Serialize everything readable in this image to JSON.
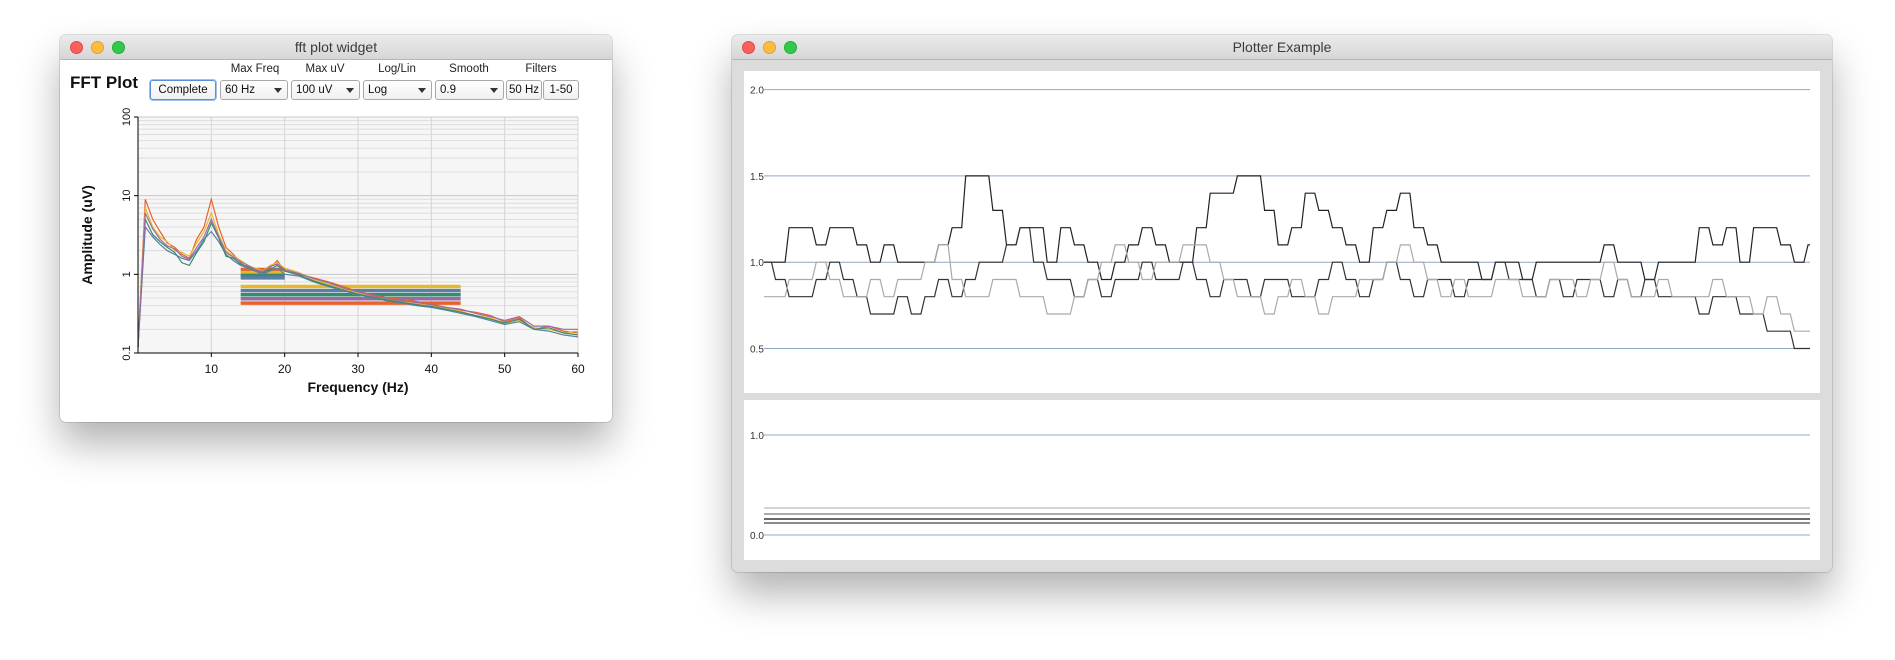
{
  "fft_window": {
    "title": "fft plot widget",
    "heading": "FFT Plot",
    "controls": {
      "complete_label": "Complete",
      "max_freq": {
        "label": "Max Freq",
        "value": "60 Hz"
      },
      "max_uv": {
        "label": "Max uV",
        "value": "100 uV"
      },
      "log_lin": {
        "label": "Log/Lin",
        "value": "Log"
      },
      "smooth": {
        "label": "Smooth",
        "value": "0.9"
      },
      "filters": {
        "label": "Filters",
        "button_50hz": "50 Hz",
        "button_range": "1-50"
      }
    },
    "chart": {
      "xlabel": "Frequency (Hz)",
      "ylabel": "Amplitude (uV)",
      "x_ticks": [
        "10",
        "20",
        "30",
        "40",
        "50",
        "60"
      ],
      "y_ticks": [
        "0.1",
        "1",
        "10",
        "100"
      ]
    }
  },
  "plotter_window": {
    "title": "Plotter Example",
    "top_panel": {
      "y_ticks": [
        "2.0",
        "1.5",
        "1.0",
        "0.5"
      ]
    },
    "bottom_panel": {
      "y_ticks": [
        "1.0",
        "0.0"
      ]
    }
  },
  "chart_data": [
    {
      "type": "line",
      "xlabel": "Frequency (Hz)",
      "ylabel": "Amplitude (uV)",
      "xlim": [
        0,
        60
      ],
      "ylim": [
        0.1,
        100
      ],
      "yscale": "log",
      "grid": true,
      "x": [
        0,
        1,
        2,
        3,
        4,
        5,
        6,
        7,
        8,
        9,
        10,
        11,
        12,
        13,
        14,
        15,
        16,
        17,
        18,
        19,
        20,
        22,
        24,
        26,
        28,
        30,
        32,
        34,
        36,
        38,
        40,
        42,
        44,
        46,
        48,
        50,
        52,
        54,
        56,
        58,
        60
      ],
      "series": [
        {
          "color": "#e8622c",
          "values": [
            0.12,
            9,
            5,
            3.5,
            2.5,
            2.2,
            1.8,
            1.6,
            2.8,
            4,
            9,
            4,
            2.2,
            1.8,
            1.4,
            1.2,
            1.1,
            1.0,
            1.2,
            1.5,
            1.1,
            1.0,
            0.9,
            0.8,
            0.7,
            0.6,
            0.55,
            0.5,
            0.48,
            0.45,
            0.42,
            0.38,
            0.35,
            0.33,
            0.3,
            0.25,
            0.28,
            0.2,
            0.22,
            0.19,
            0.18
          ]
        },
        {
          "color": "#e8b82c",
          "values": [
            0.12,
            7,
            4,
            3,
            2.6,
            2.0,
            1.9,
            1.7,
            2.5,
            3.5,
            6,
            3.2,
            2.0,
            1.7,
            1.5,
            1.3,
            1.2,
            1.1,
            1.3,
            1.4,
            1.2,
            1.05,
            0.85,
            0.75,
            0.65,
            0.58,
            0.52,
            0.48,
            0.45,
            0.43,
            0.4,
            0.37,
            0.34,
            0.3,
            0.28,
            0.24,
            0.26,
            0.21,
            0.2,
            0.18,
            0.19
          ]
        },
        {
          "color": "#5a7fa8",
          "values": [
            0.12,
            4,
            3,
            2.4,
            2.0,
            1.8,
            1.6,
            1.5,
            2.0,
            2.8,
            3.5,
            2.6,
            1.8,
            1.5,
            1.3,
            1.2,
            1.1,
            1.0,
            1.1,
            1.2,
            1.0,
            0.95,
            0.8,
            0.7,
            0.62,
            0.55,
            0.5,
            0.46,
            0.43,
            0.4,
            0.38,
            0.35,
            0.32,
            0.29,
            0.26,
            0.23,
            0.25,
            0.2,
            0.19,
            0.17,
            0.16
          ]
        },
        {
          "color": "#3a8a6e",
          "values": [
            0.12,
            5,
            3.2,
            2.6,
            2.2,
            1.9,
            1.4,
            1.3,
            1.9,
            2.6,
            4.5,
            2.9,
            1.7,
            1.6,
            1.35,
            1.25,
            1.15,
            1.05,
            1.15,
            1.3,
            1.1,
            0.98,
            0.82,
            0.72,
            0.63,
            0.56,
            0.51,
            0.47,
            0.44,
            0.41,
            0.39,
            0.36,
            0.33,
            0.3,
            0.27,
            0.24,
            0.27,
            0.2,
            0.21,
            0.18,
            0.17
          ]
        },
        {
          "color": "#9a6aa8",
          "values": [
            0.12,
            6,
            3.8,
            2.8,
            2.3,
            2.1,
            1.7,
            1.55,
            2.2,
            3.0,
            5,
            3.0,
            1.9,
            1.65,
            1.45,
            1.3,
            1.15,
            1.08,
            1.25,
            1.35,
            1.15,
            1.02,
            0.88,
            0.78,
            0.67,
            0.6,
            0.53,
            0.49,
            0.46,
            0.44,
            0.41,
            0.38,
            0.36,
            0.32,
            0.29,
            0.26,
            0.29,
            0.22,
            0.22,
            0.2,
            0.2
          ]
        }
      ],
      "bands": [
        {
          "x_range": [
            14,
            20
          ],
          "y": 1.15,
          "color": "#e8622c"
        },
        {
          "x_range": [
            14,
            20
          ],
          "y": 1.05,
          "color": "#e8b82c"
        },
        {
          "x_range": [
            14,
            20
          ],
          "y": 0.97,
          "color": "#3a8a6e"
        },
        {
          "x_range": [
            14,
            20
          ],
          "y": 0.9,
          "color": "#5a7fa8"
        },
        {
          "x_range": [
            14,
            44
          ],
          "y": 0.7,
          "color": "#e8b82c"
        },
        {
          "x_range": [
            14,
            44
          ],
          "y": 0.62,
          "color": "#5a7fa8"
        },
        {
          "x_range": [
            14,
            44
          ],
          "y": 0.55,
          "color": "#3a8a6e"
        },
        {
          "x_range": [
            14,
            44
          ],
          "y": 0.49,
          "color": "#9a6aa8"
        },
        {
          "x_range": [
            14,
            44
          ],
          "y": 0.43,
          "color": "#e8622c"
        }
      ]
    },
    {
      "type": "line",
      "ylim": [
        0.3,
        2.05
      ],
      "reference_lines": [
        2.0,
        1.5,
        1.0,
        0.5
      ],
      "series": [
        {
          "color": "#222222",
          "values": [
            1.0,
            1.0,
            1.2,
            1.2,
            1.1,
            1.2,
            1.2,
            1.1,
            1.0,
            1.1,
            1.0,
            1.0,
            1.0,
            1.1,
            1.2,
            1.5,
            1.5,
            1.3,
            1.1,
            1.2,
            1.2,
            1.0,
            1.2,
            1.1,
            1.0,
            0.9,
            1.0,
            1.1,
            1.2,
            1.1,
            1.0,
            1.0,
            1.2,
            1.4,
            1.4,
            1.5,
            1.5,
            1.3,
            1.1,
            1.2,
            1.4,
            1.3,
            1.2,
            1.1,
            1.0,
            1.2,
            1.3,
            1.4,
            1.2,
            1.1,
            1.0,
            1.0,
            1.0,
            0.9,
            1.0,
            1.0,
            0.9,
            1.0,
            1.0,
            1.0,
            1.0,
            1.0,
            1.1,
            1.0,
            1.0,
            0.9,
            1.0,
            1.0,
            1.0,
            1.2,
            1.1,
            1.2,
            1.0,
            1.2,
            1.2,
            1.1,
            1.0,
            1.1
          ]
        },
        {
          "color": "#333333",
          "values": [
            1.0,
            0.9,
            0.8,
            0.8,
            0.9,
            1.0,
            0.9,
            0.8,
            0.7,
            0.7,
            0.8,
            0.7,
            0.8,
            0.9,
            0.8,
            0.9,
            1.0,
            1.0,
            1.1,
            1.2,
            1.0,
            0.9,
            0.9,
            0.8,
            0.9,
            0.8,
            0.9,
            0.9,
            1.0,
            0.9,
            0.9,
            1.0,
            0.9,
            0.8,
            0.9,
            0.9,
            0.8,
            0.9,
            0.9,
            0.8,
            0.8,
            0.9,
            1.0,
            0.9,
            0.8,
            0.9,
            1.0,
            0.9,
            0.8,
            0.9,
            0.9,
            0.8,
            0.9,
            0.9,
            1.0,
            0.9,
            0.9,
            0.8,
            0.9,
            0.8,
            0.9,
            0.9,
            0.8,
            0.9,
            0.8,
            0.9,
            0.8,
            0.8,
            0.8,
            0.7,
            0.8,
            0.8,
            0.7,
            0.7,
            0.6,
            0.6,
            0.5,
            0.5
          ]
        },
        {
          "color": "#aaaaaa",
          "values": [
            0.8,
            0.8,
            0.9,
            0.9,
            1.0,
            0.9,
            0.8,
            0.8,
            0.9,
            0.8,
            0.9,
            0.9,
            1.0,
            1.1,
            0.9,
            0.8,
            0.8,
            0.9,
            0.9,
            0.8,
            0.8,
            0.7,
            0.7,
            0.8,
            0.9,
            1.0,
            1.1,
            1.0,
            0.9,
            1.0,
            1.0,
            1.1,
            1.1,
            1.0,
            0.9,
            0.8,
            0.8,
            0.7,
            0.8,
            0.9,
            0.8,
            0.7,
            0.8,
            0.8,
            0.9,
            0.9,
            1.0,
            1.1,
            1.0,
            0.9,
            0.8,
            0.9,
            0.8,
            0.8,
            0.9,
            0.9,
            0.8,
            0.8,
            0.9,
            0.9,
            0.8,
            0.9,
            1.0,
            0.9,
            0.8,
            0.8,
            0.9,
            0.8,
            0.8,
            0.8,
            0.9,
            0.8,
            0.8,
            0.7,
            0.8,
            0.7,
            0.6,
            0.6
          ]
        }
      ]
    },
    {
      "type": "line",
      "ylim": [
        -0.15,
        1.25
      ],
      "reference_lines": [
        1.0,
        0.0
      ],
      "series": [
        {
          "color": "#bbbbbb",
          "values": [
            0.27,
            0.27
          ]
        },
        {
          "color": "#777777",
          "values": [
            0.21,
            0.21
          ]
        },
        {
          "color": "#111111",
          "values": [
            0.16,
            0.16
          ]
        },
        {
          "color": "#444444",
          "values": [
            0.12,
            0.12
          ]
        }
      ]
    }
  ]
}
